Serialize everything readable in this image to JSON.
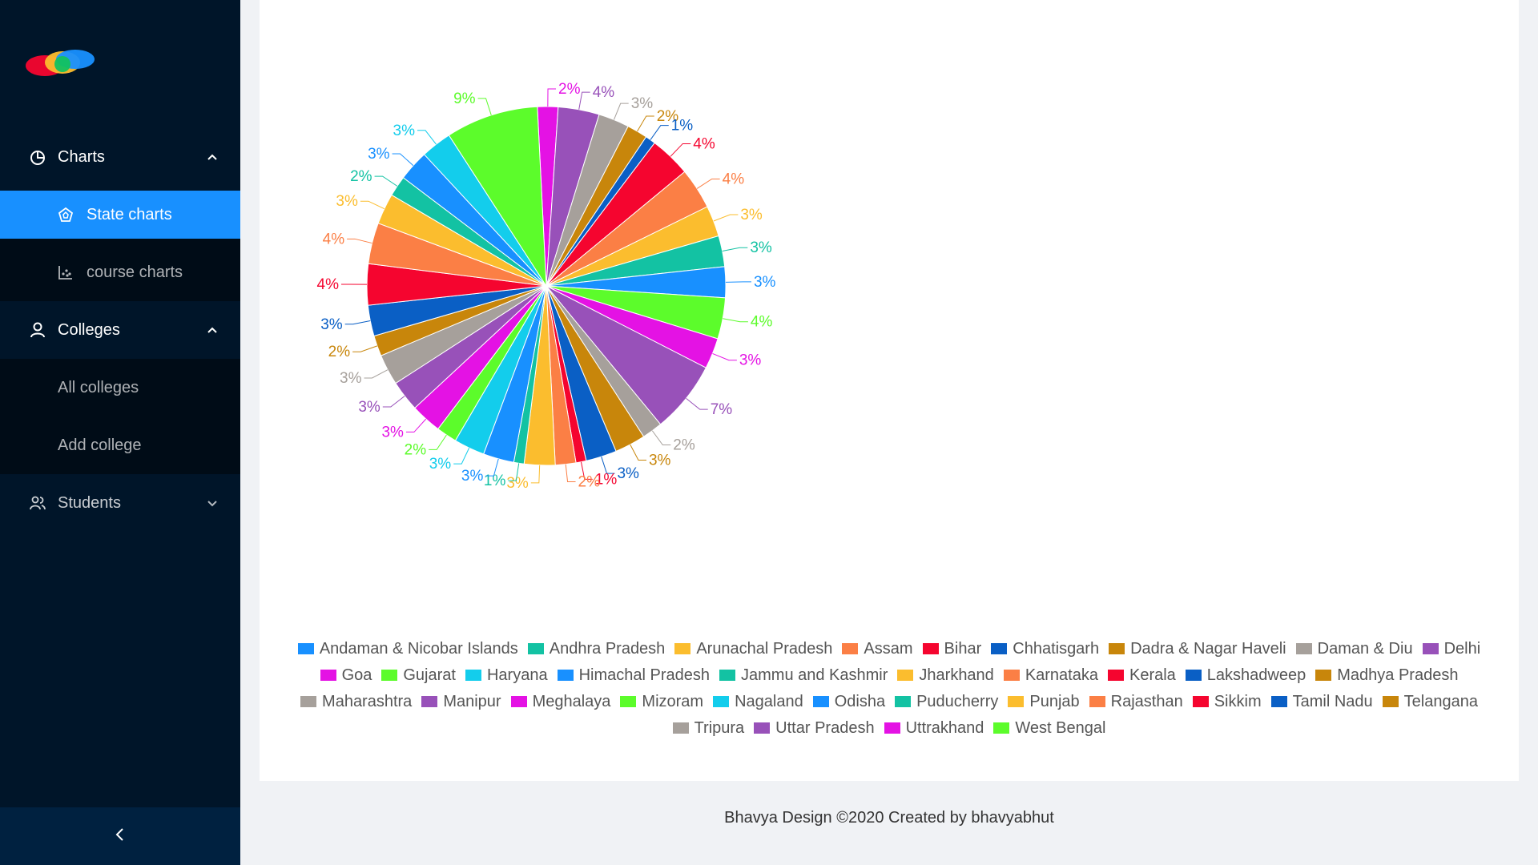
{
  "sidebar": {
    "menu": [
      {
        "label": "Charts",
        "icon": "pie-chart-icon",
        "expanded": true,
        "items": [
          {
            "label": "State charts",
            "icon": "radar-chart-icon",
            "selected": true
          },
          {
            "label": "course charts",
            "icon": "dot-chart-icon",
            "selected": false
          }
        ]
      },
      {
        "label": "Colleges",
        "icon": "user-icon",
        "expanded": true,
        "items": [
          {
            "label": "All colleges"
          },
          {
            "label": "Add college"
          }
        ]
      },
      {
        "label": "Students",
        "icon": "team-icon",
        "expanded": false,
        "items": []
      }
    ],
    "collapse_icon": "left-chevron-icon"
  },
  "footer": {
    "text": "Bhavya Design ©2020 Created by bhavyabhut"
  },
  "chart_data": {
    "type": "pie",
    "title": "",
    "labels": [
      "Andaman & Nicobar Islands",
      "Andhra Pradesh",
      "Arunachal Pradesh",
      "Assam",
      "Bihar",
      "Chhatisgarh",
      "Dadra & Nagar Haveli",
      "Daman & Diu",
      "Delhi",
      "Goa",
      "Gujarat",
      "Haryana",
      "Himachal Pradesh",
      "Jammu and Kashmir",
      "Jharkhand",
      "Karnataka",
      "Kerala",
      "Lakshadweep",
      "Madhya Pradesh",
      "Maharashtra",
      "Manipur",
      "Meghalaya",
      "Mizoram",
      "Nagaland",
      "Odisha",
      "Puducherry",
      "Punjab",
      "Rajasthan",
      "Sikkim",
      "Tamil Nadu",
      "Telangana",
      "Tripura",
      "Uttar Pradesh",
      "Uttrakhand",
      "West Bengal"
    ],
    "values": [
      3,
      3,
      3,
      4,
      4,
      1,
      2,
      3,
      3,
      3,
      9,
      3,
      3,
      2,
      3,
      4,
      4,
      3,
      2,
      3,
      4,
      2,
      2,
      3,
      3,
      1,
      3,
      2,
      1,
      3,
      3,
      2,
      7,
      3,
      4
    ],
    "slice_order": [
      "Meghalaya",
      "Manipur",
      "Daman & Diu",
      "Dadra & Nagar Haveli",
      "Chhatisgarh",
      "Bihar",
      "Assam",
      "Arunachal Pradesh",
      "Andhra Pradesh",
      "Andaman & Nicobar Islands",
      "West Bengal",
      "Uttrakhand",
      "Uttar Pradesh",
      "Tripura",
      "Telangana",
      "Tamil Nadu",
      "Sikkim",
      "Rajasthan",
      "Punjab",
      "Puducherry",
      "Odisha",
      "Nagaland",
      "Mizoram",
      "Goa",
      "Delhi",
      "Maharashtra",
      "Madhya Pradesh",
      "Lakshadweep",
      "Kerala",
      "Karnataka",
      "Jharkhand",
      "Jammu and Kashmir",
      "Himachal Pradesh",
      "Haryana",
      "Gujarat"
    ],
    "colors": [
      "#1890ff",
      "#13c2a3",
      "#fbbd2e",
      "#fb7f45",
      "#f5052f",
      "#0a5fc5",
      "#c8860b",
      "#a6a09b",
      "#9851b9",
      "#e412e4",
      "#5cfc2b",
      "#13cdec"
    ],
    "label_unit": "%",
    "legend_position": "bottom"
  }
}
